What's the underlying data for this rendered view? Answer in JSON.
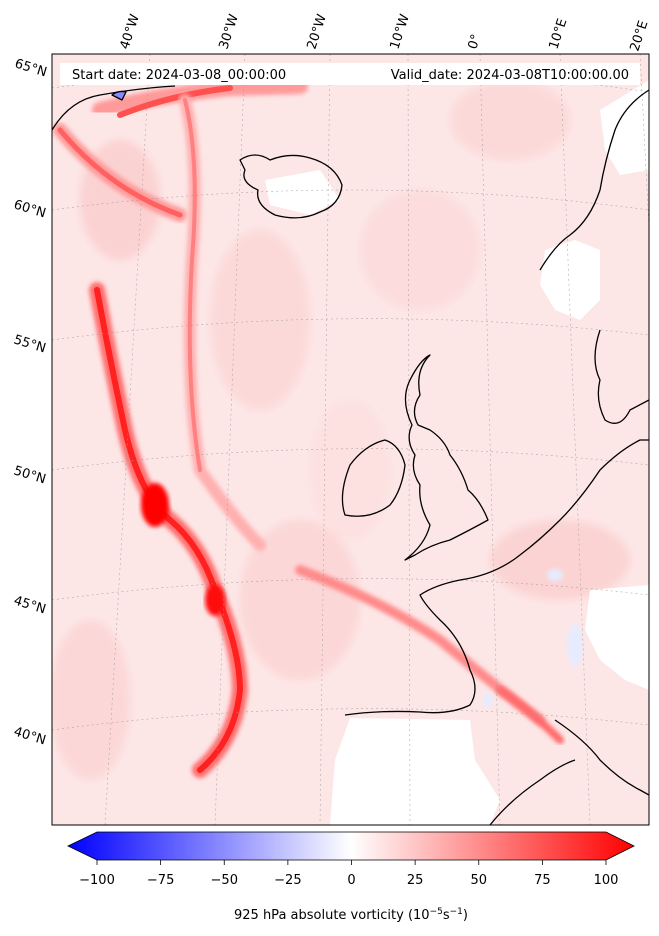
{
  "header": {
    "start_date": "Start date: 2024-03-08_00:00:00",
    "valid_date": "Valid_date: 2024-03-08T10:00:00.00"
  },
  "map": {
    "lon_labels": [
      "40°W",
      "30°W",
      "20°W",
      "10°W",
      "0°",
      "10°E",
      "20°E"
    ],
    "lat_labels": [
      "65°N",
      "60°N",
      "55°N",
      "50°N",
      "45°N",
      "40°N"
    ],
    "field": "925 hPa absolute vorticity",
    "colors": {
      "land_outline": "#000000",
      "background_tint": "#fde6e6",
      "strong_positive": "#ff0000",
      "mid_positive": "#ff8a8a",
      "weak_positive": "#ffd0d0",
      "weak_negative": "#e6ebff",
      "masked": "#ffffff"
    }
  },
  "colorbar": {
    "ticks": [
      "−100",
      "−75",
      "−50",
      "−25",
      "0",
      "25",
      "50",
      "75",
      "100"
    ],
    "label": "925 hPa absolute vorticity (10",
    "unit_exp1": "−5",
    "unit_mid": "s",
    "unit_exp2": "−1",
    "unit_close": ")",
    "min": -100,
    "max": 100,
    "extend": "both",
    "cmap": "bwr",
    "colors": {
      "low": "#0000ff",
      "mid": "#ffffff",
      "high": "#ff0000"
    }
  }
}
